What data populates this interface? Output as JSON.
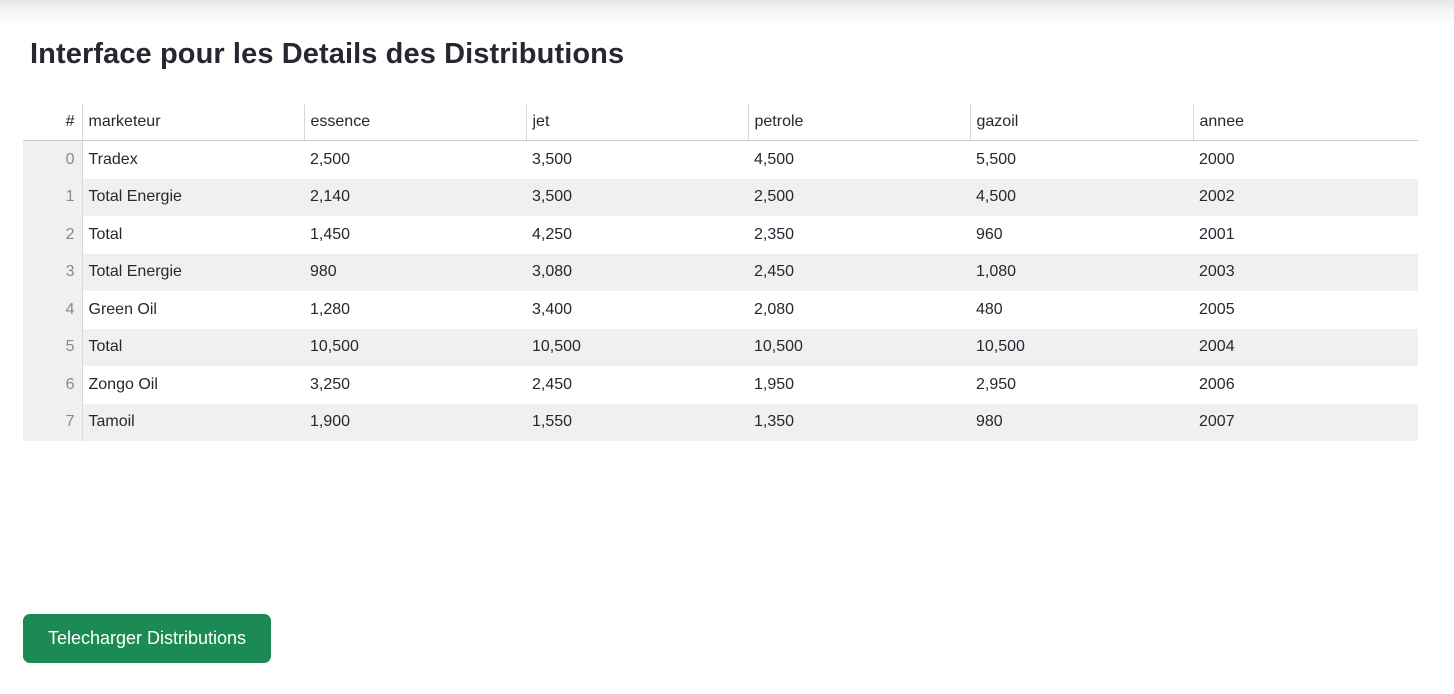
{
  "page": {
    "title": "Interface pour les Details des Distributions"
  },
  "table": {
    "columns": [
      "#",
      "marketeur",
      "essence",
      "jet",
      "petrole",
      "gazoil",
      "annee"
    ],
    "rows": [
      [
        "0",
        "Tradex",
        "2,500",
        "3,500",
        "4,500",
        "5,500",
        "2000"
      ],
      [
        "1",
        "Total Energie",
        "2,140",
        "3,500",
        "2,500",
        "4,500",
        "2002"
      ],
      [
        "2",
        "Total",
        "1,450",
        "4,250",
        "2,350",
        "960",
        "2001"
      ],
      [
        "3",
        "Total Energie",
        "980",
        "3,080",
        "2,450",
        "1,080",
        "2003"
      ],
      [
        "4",
        "Green Oil",
        "1,280",
        "3,400",
        "2,080",
        "480",
        "2005"
      ],
      [
        "5",
        "Total",
        "10,500",
        "10,500",
        "10,500",
        "10,500",
        "2004"
      ],
      [
        "6",
        "Zongo Oil",
        "3,250",
        "2,450",
        "1,950",
        "2,950",
        "2006"
      ],
      [
        "7",
        "Tamoil",
        "1,900",
        "1,550",
        "1,350",
        "980",
        "2007"
      ]
    ]
  },
  "download_button": {
    "label": "Telecharger Distributions"
  },
  "colors": {
    "button_bg": "#1b8a55",
    "stripe_bg": "#f0f0f0",
    "text": "#262730"
  }
}
